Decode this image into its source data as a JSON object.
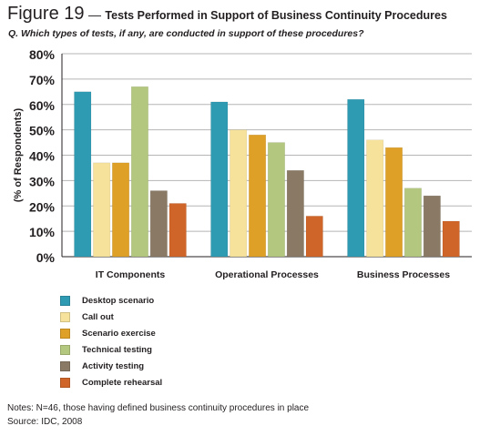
{
  "figure": {
    "number": "Figure 19",
    "dash": "—",
    "title": "Tests Performed in Support of Business Continuity Procedures",
    "question": "Q. Which types of tests, if any, are conducted in support of these procedures?"
  },
  "chart_data": {
    "type": "bar",
    "ylabel": "(% of Respondents)",
    "ylim": [
      0,
      80
    ],
    "yticks": [
      "0%",
      "10%",
      "20%",
      "30%",
      "40%",
      "50%",
      "60%",
      "70%",
      "80%"
    ],
    "grid": true,
    "legend_position": "bottom-left",
    "categories": [
      "IT Components",
      "Operational Processes",
      "Business Processes"
    ],
    "series": [
      {
        "name": "Desktop scenario",
        "color": "#2f9bb3",
        "values": [
          65,
          61,
          62
        ]
      },
      {
        "name": "Call out",
        "color": "#f6e29b",
        "values": [
          37,
          50,
          46
        ]
      },
      {
        "name": "Scenario exercise",
        "color": "#dea026",
        "values": [
          37,
          48,
          43
        ]
      },
      {
        "name": "Technical testing",
        "color": "#b3c77e",
        "values": [
          67,
          45,
          27
        ]
      },
      {
        "name": "Activity testing",
        "color": "#8a7a65",
        "values": [
          26,
          34,
          24
        ]
      },
      {
        "name": "Complete rehearsal",
        "color": "#cf6529",
        "values": [
          21,
          16,
          14
        ]
      }
    ]
  },
  "notes": {
    "line1": "Notes: N=46, those having defined business continuity procedures in place",
    "line2": "Source: IDC, 2008"
  }
}
